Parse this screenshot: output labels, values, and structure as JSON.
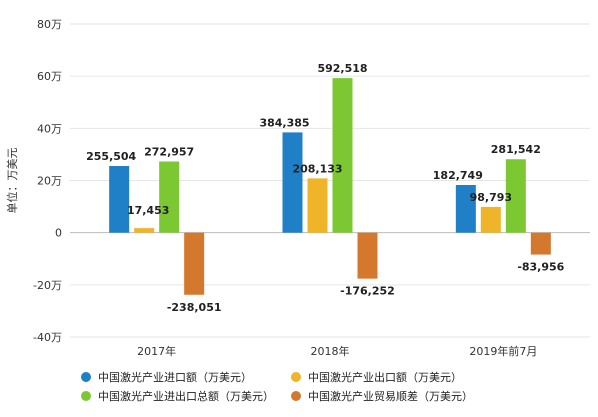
{
  "chart_data": {
    "type": "bar",
    "title": "",
    "xlabel": "",
    "ylabel": "单位：万美元",
    "ylim": [
      -400000,
      800000
    ],
    "yticks": [
      -400000,
      -200000,
      0,
      200000,
      400000,
      600000,
      800000
    ],
    "ytick_labels": [
      "-40万",
      "-20万",
      "0",
      "20万",
      "40万",
      "60万",
      "80万"
    ],
    "categories": [
      "2017年",
      "2018年",
      "2019年前7月"
    ],
    "grid": true,
    "legend_position": "bottom",
    "series": [
      {
        "name": "中国激光产业进口额（万美元）",
        "color": "#1f7fc7",
        "values": [
          255504,
          384385,
          182749
        ],
        "labels": [
          "255,504",
          "384,385",
          "182,749"
        ]
      },
      {
        "name": "中国激光产业出口额（万美元）",
        "color": "#f0b429",
        "values": [
          17453,
          208133,
          98793
        ],
        "labels": [
          "17,453",
          "208,133",
          "98,793"
        ]
      },
      {
        "name": "中国激光产业进出口总额（万美元）",
        "color": "#7cc832",
        "values": [
          272957,
          592518,
          281542
        ],
        "labels": [
          "272,957",
          "592,518",
          "281,542"
        ]
      },
      {
        "name": "中国激光产业贸易顺差（万美元）",
        "color": "#d4782e",
        "values": [
          -238051,
          -176252,
          -83956
        ],
        "labels": [
          "-238,051",
          "-176,252",
          "-83,956"
        ]
      }
    ]
  }
}
